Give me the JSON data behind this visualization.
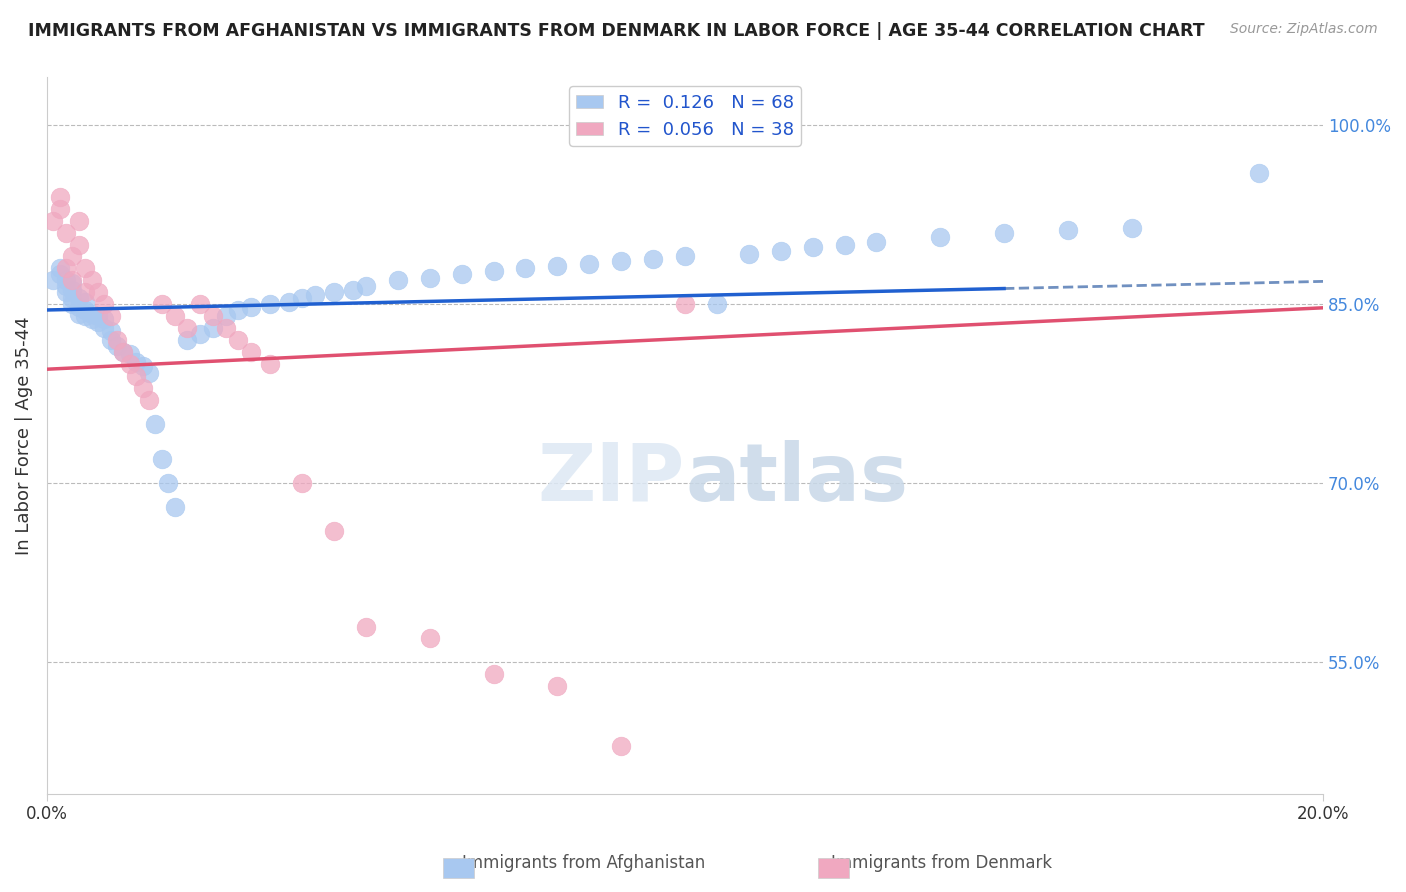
{
  "title": "IMMIGRANTS FROM AFGHANISTAN VS IMMIGRANTS FROM DENMARK IN LABOR FORCE | AGE 35-44 CORRELATION CHART",
  "source": "Source: ZipAtlas.com",
  "ylabel": "In Labor Force | Age 35-44",
  "yticklabels_right": [
    "100.0%",
    "85.0%",
    "70.0%",
    "55.0%"
  ],
  "yticks": [
    1.0,
    0.85,
    0.7,
    0.55
  ],
  "xmin": 0.0,
  "xmax": 0.2,
  "ymin": 0.44,
  "ymax": 1.04,
  "afghanistan_R": 0.126,
  "afghanistan_N": 68,
  "denmark_R": 0.056,
  "denmark_N": 38,
  "afghanistan_color": "#a8c8f0",
  "denmark_color": "#f0a8c0",
  "afghanistan_line_color": "#2060d0",
  "denmark_line_color": "#e05070",
  "trend_line_dashed_color": "#7090c0",
  "watermark_zip": "ZIP",
  "watermark_atlas": "atlas",
  "legend_box_color": "#ffffff",
  "background_color": "#ffffff",
  "afghanistan_x": [
    0.001,
    0.002,
    0.002,
    0.003,
    0.003,
    0.003,
    0.004,
    0.004,
    0.004,
    0.004,
    0.005,
    0.005,
    0.005,
    0.006,
    0.006,
    0.006,
    0.007,
    0.007,
    0.008,
    0.008,
    0.009,
    0.009,
    0.01,
    0.01,
    0.011,
    0.012,
    0.013,
    0.014,
    0.015,
    0.016,
    0.017,
    0.018,
    0.019,
    0.02,
    0.022,
    0.024,
    0.026,
    0.028,
    0.03,
    0.032,
    0.035,
    0.038,
    0.04,
    0.042,
    0.045,
    0.048,
    0.05,
    0.055,
    0.06,
    0.065,
    0.07,
    0.075,
    0.08,
    0.085,
    0.09,
    0.095,
    0.1,
    0.105,
    0.11,
    0.115,
    0.12,
    0.125,
    0.13,
    0.14,
    0.15,
    0.16,
    0.17,
    0.19
  ],
  "afghanistan_y": [
    0.87,
    0.875,
    0.88,
    0.86,
    0.865,
    0.87,
    0.85,
    0.855,
    0.862,
    0.868,
    0.842,
    0.848,
    0.855,
    0.84,
    0.845,
    0.852,
    0.838,
    0.842,
    0.835,
    0.84,
    0.83,
    0.838,
    0.82,
    0.828,
    0.815,
    0.81,
    0.808,
    0.802,
    0.798,
    0.792,
    0.75,
    0.72,
    0.7,
    0.68,
    0.82,
    0.825,
    0.83,
    0.84,
    0.845,
    0.848,
    0.85,
    0.852,
    0.855,
    0.858,
    0.86,
    0.862,
    0.865,
    0.87,
    0.872,
    0.875,
    0.878,
    0.88,
    0.882,
    0.884,
    0.886,
    0.888,
    0.89,
    0.85,
    0.892,
    0.895,
    0.898,
    0.9,
    0.902,
    0.906,
    0.91,
    0.912,
    0.914,
    0.96
  ],
  "denmark_x": [
    0.001,
    0.002,
    0.002,
    0.003,
    0.003,
    0.004,
    0.004,
    0.005,
    0.005,
    0.006,
    0.006,
    0.007,
    0.008,
    0.009,
    0.01,
    0.011,
    0.012,
    0.013,
    0.014,
    0.015,
    0.016,
    0.018,
    0.02,
    0.022,
    0.024,
    0.026,
    0.028,
    0.03,
    0.032,
    0.035,
    0.04,
    0.045,
    0.05,
    0.06,
    0.07,
    0.08,
    0.09,
    0.1
  ],
  "denmark_y": [
    0.92,
    0.93,
    0.94,
    0.88,
    0.91,
    0.87,
    0.89,
    0.9,
    0.92,
    0.86,
    0.88,
    0.87,
    0.86,
    0.85,
    0.84,
    0.82,
    0.81,
    0.8,
    0.79,
    0.78,
    0.77,
    0.85,
    0.84,
    0.83,
    0.85,
    0.84,
    0.83,
    0.82,
    0.81,
    0.8,
    0.7,
    0.66,
    0.58,
    0.57,
    0.54,
    0.53,
    0.48,
    0.85
  ]
}
